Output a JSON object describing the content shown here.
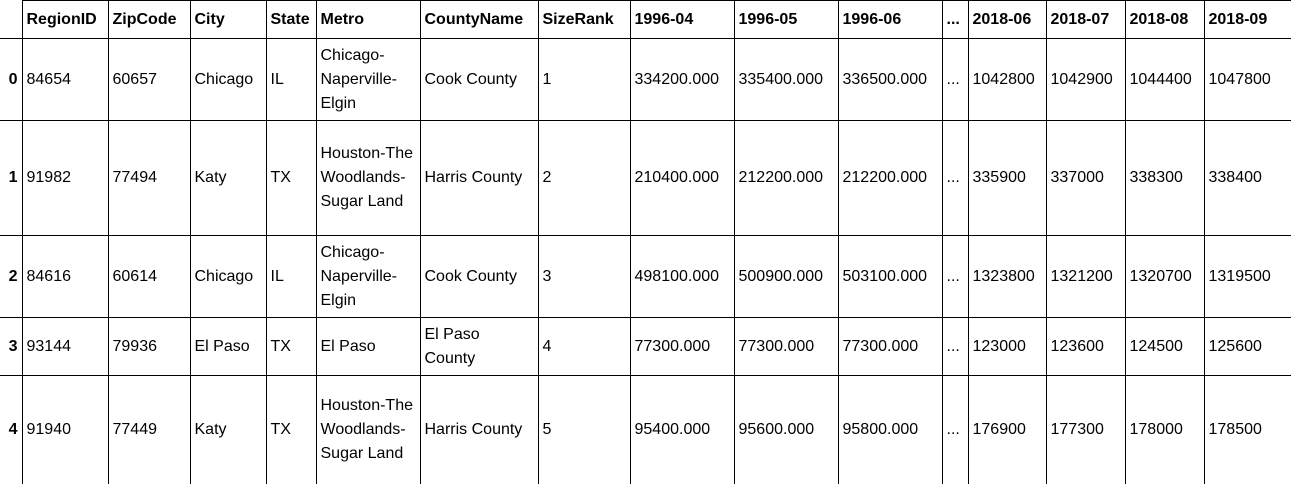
{
  "table": {
    "columns": [
      "RegionID",
      "ZipCode",
      "City",
      "State",
      "Metro",
      "CountyName",
      "SizeRank",
      "1996-04",
      "1996-05",
      "1996-06",
      "...",
      "2018-06",
      "2018-07",
      "2018-08",
      "2018-09"
    ],
    "rows": [
      {
        "index": "0",
        "cells": [
          "84654",
          "60657",
          "Chicago",
          "IL",
          "Chicago-Naperville-Elgin",
          "Cook County",
          "1",
          "334200.000",
          "335400.000",
          "336500.000",
          "...",
          "1042800",
          "1042900",
          "1044400",
          "1047800"
        ]
      },
      {
        "index": "1",
        "cells": [
          "91982",
          "77494",
          "Katy",
          "TX",
          "Houston-The Woodlands-Sugar Land",
          "Harris County",
          "2",
          "210400.000",
          "212200.000",
          "212200.000",
          "...",
          "335900",
          "337000",
          "338300",
          "338400"
        ]
      },
      {
        "index": "2",
        "cells": [
          "84616",
          "60614",
          "Chicago",
          "IL",
          "Chicago-Naperville-Elgin",
          "Cook County",
          "3",
          "498100.000",
          "500900.000",
          "503100.000",
          "...",
          "1323800",
          "1321200",
          "1320700",
          "1319500"
        ]
      },
      {
        "index": "3",
        "cells": [
          "93144",
          "79936",
          "El Paso",
          "TX",
          "El Paso",
          "El Paso County",
          "4",
          "77300.000",
          "77300.000",
          "77300.000",
          "...",
          "123000",
          "123600",
          "124500",
          "125600"
        ]
      },
      {
        "index": "4",
        "cells": [
          "91940",
          "77449",
          "Katy",
          "TX",
          "Houston-The Woodlands-Sugar Land",
          "Harris County",
          "5",
          "95400.000",
          "95600.000",
          "95800.000",
          "...",
          "176900",
          "177300",
          "178000",
          "178500"
        ]
      }
    ]
  }
}
